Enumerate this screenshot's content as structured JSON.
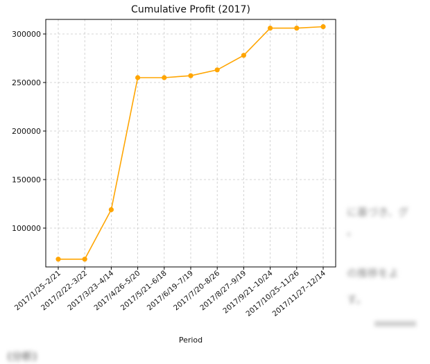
{
  "background_text": {
    "line1": "に基づき、グ",
    "line2": "。",
    "line3": "の推移をよ",
    "line4": "す。",
    "line5": "(分析)"
  },
  "chart_data": {
    "type": "line",
    "title": "Cumulative Profit (2017)",
    "xlabel": "Period",
    "ylabel": "",
    "categories": [
      "2017/1/25–2/21",
      "2017/2/22–3/22",
      "2017/3/23–4/14",
      "2017/4/26–5/20",
      "2017/5/21–6/18",
      "2017/6/19–7/19",
      "2017/7/20–8/26",
      "2017/8/27–9/19",
      "2017/9/21–10/24",
      "2017/10/25–11/26",
      "2017/11/27–12/14"
    ],
    "series": [
      {
        "name": "Cumulative Profit",
        "color": "#FFA500",
        "values": [
          68000,
          68000,
          119000,
          255000,
          255000,
          257000,
          263000,
          278000,
          306000,
          306000,
          307500
        ]
      }
    ],
    "ylim": [
      60000,
      315000
    ],
    "yticks": [
      100000,
      150000,
      200000,
      250000,
      300000
    ],
    "grid": true
  }
}
